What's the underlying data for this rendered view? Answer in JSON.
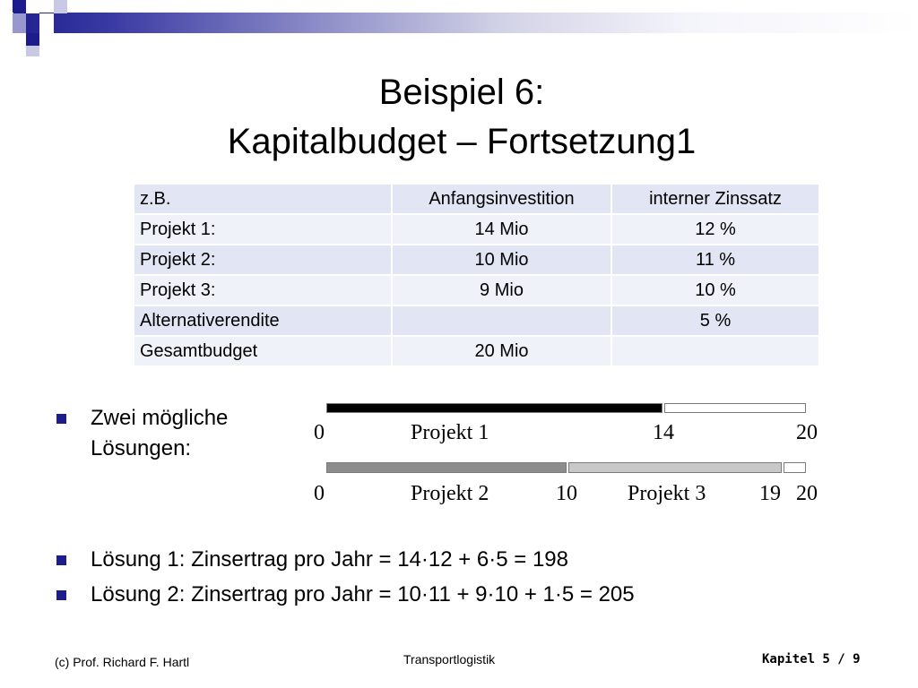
{
  "title": {
    "line1": "Beispiel 6:",
    "line2": "Kapitalbudget – Fortsetzung1"
  },
  "table": {
    "header": [
      "z.B.",
      "Anfangsinvestition",
      "interner Zinssatz"
    ],
    "rows": [
      [
        "Projekt 1:",
        "14 Mio",
        "12 %"
      ],
      [
        "Projekt 2:",
        "10 Mio",
        "11 %"
      ],
      [
        "Projekt 3:",
        "9 Mio",
        "10 %"
      ],
      [
        "Alternativerendite",
        "",
        "5 %"
      ],
      [
        "Gesamtbudget",
        "20 Mio",
        ""
      ]
    ]
  },
  "bullets": {
    "b1_line1": "Zwei mögliche",
    "b1_line2": "Lösungen:",
    "b2": "Lösung 1: Zinsertrag pro Jahr = 14·12 + 6·5 = 198",
    "b3": "Lösung 2: Zinsertrag pro Jahr = 10·11 + 9·10 + 1·5 = 205"
  },
  "diagram": {
    "total": 20,
    "row1": {
      "start": "0",
      "label": "Projekt 1",
      "mid": "14",
      "end": "20",
      "segments": [
        {
          "from": 0,
          "to": 14,
          "color": "#000000"
        },
        {
          "from": 14,
          "to": 20,
          "color": "#ffffff"
        }
      ]
    },
    "row2": {
      "start": "0",
      "label_a": "Projekt 2",
      "mid_a": "10",
      "label_b": "Projekt 3",
      "mid_b": "19",
      "end": "20",
      "segments": [
        {
          "from": 0,
          "to": 10,
          "color": "#8c8c8c"
        },
        {
          "from": 10,
          "to": 19,
          "color": "#c8c8c8"
        },
        {
          "from": 19,
          "to": 20,
          "color": "#ffffff"
        }
      ]
    }
  },
  "footer": {
    "left": "(c) Prof. Richard F. Hartl",
    "center": "Transportlogistik",
    "right": "Kapitel 5 / 9"
  },
  "colors": {
    "accent": "#1c1c8c",
    "table_row_odd": "#e2e5f3",
    "table_row_even": "#f0f2f9"
  }
}
